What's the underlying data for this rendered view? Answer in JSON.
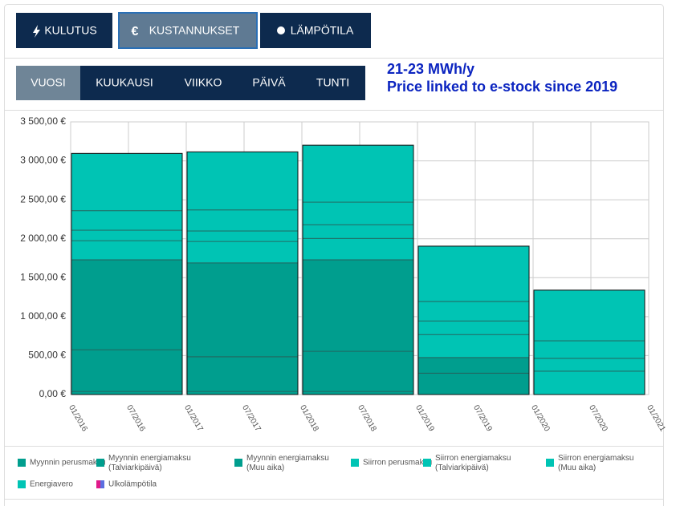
{
  "tabs": [
    "KULUTUS",
    "KUSTANNUKSET",
    "LÄMPÖTILA"
  ],
  "periods": [
    "VUOSI",
    "KUUKAUSI",
    "VIIKKO",
    "PÄIVÄ",
    "TUNTI"
  ],
  "note": [
    "21-23 MWh/y",
    "Price linked to e-stock since 2019"
  ],
  "chart_data": {
    "type": "stacked_bar",
    "xticks": [
      "01/2016",
      "07/2016",
      "01/2017",
      "07/2017",
      "01/2018",
      "07/2018",
      "01/2019",
      "07/2019",
      "01/2020",
      "07/2020",
      "01/2021"
    ],
    "ylim": [
      0,
      3500
    ],
    "yticks": [
      {
        "value": 0,
        "label": "0,00 €"
      },
      {
        "value": 500,
        "label": "500,00 €"
      },
      {
        "value": 1000,
        "label": "1 000,00 €"
      },
      {
        "value": 1500,
        "label": "1 500,00 €"
      },
      {
        "value": 2000,
        "label": "2 000,00 €"
      },
      {
        "value": 2500,
        "label": "2 500,00 €"
      },
      {
        "value": 3000,
        "label": "3 000,00 €"
      },
      {
        "value": 3500,
        "label": "3 500,00 €"
      }
    ],
    "grid": true,
    "series": [
      {
        "name": "Myynnin perusmaksu",
        "color": "#009e8e",
        "values": [
          40,
          40,
          40,
          0,
          0
        ]
      },
      {
        "name": "Myynnin energiamaksu (Talviarkipäivä)",
        "color": "#009e8e",
        "values": [
          535,
          445,
          515,
          275,
          0
        ]
      },
      {
        "name": "Myynnin energiamaksu (Muu aika)",
        "color": "#009e8e",
        "values": [
          1155,
          1205,
          1175,
          200,
          0
        ]
      },
      {
        "name": "Siirron perusmaksu",
        "color": "#00c4b4",
        "values": [
          245,
          275,
          275,
          295,
          300
        ]
      },
      {
        "name": "Siirron energiamaksu (Talviarkipäivä)",
        "color": "#00c4b4",
        "values": [
          135,
          135,
          175,
          175,
          165
        ]
      },
      {
        "name": "Siirron energiamaksu (Muu aika)",
        "color": "#00c4b4",
        "values": [
          250,
          270,
          290,
          250,
          225
        ]
      },
      {
        "name": "Energiavero",
        "color": "#00c4b4",
        "values": [
          735,
          745,
          730,
          710,
          650
        ]
      },
      {
        "name": "Ulkolämpötila",
        "color": "#e0198a",
        "values": [
          null,
          null,
          null,
          null,
          null
        ]
      }
    ]
  }
}
